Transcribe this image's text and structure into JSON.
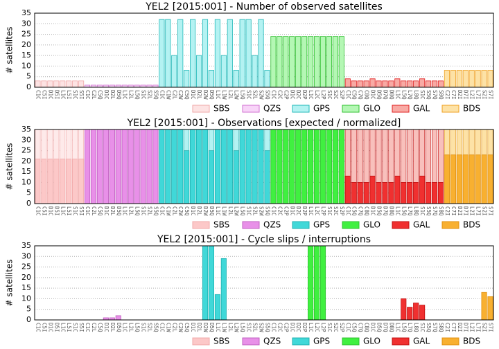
{
  "chart_data": [
    {
      "type": "bar",
      "title": "YEL2 [2015:001] - Number of observed satellites",
      "ylabel": "# satellites",
      "ylim": [
        0,
        35
      ],
      "yticks": [
        0,
        5,
        10,
        15,
        20,
        25,
        30,
        35
      ],
      "grid": true,
      "series": [
        {
          "name": "SBS",
          "color": "#fde3e3",
          "edge_color": "#f0a8a8",
          "categories": [
            "C1C",
            "C5I",
            "D1C",
            "D5I",
            "L1C",
            "L5I",
            "S1C",
            "S5I"
          ],
          "values": [
            3,
            3,
            3,
            3,
            3,
            3,
            3,
            3
          ]
        },
        {
          "name": "QZS",
          "color": "#f8d4f8",
          "edge_color": "#d070d0",
          "categories": [
            "C1C",
            "C2L",
            "C5Q",
            "D1C",
            "D2L",
            "D5Q",
            "L1C",
            "L2L",
            "L5Q",
            "S1C",
            "S2L",
            "S5Q"
          ],
          "values": [
            1,
            1,
            1,
            1,
            1,
            1,
            1,
            1,
            1,
            1,
            1,
            1
          ]
        },
        {
          "name": "GPS",
          "color": "#b4f2f2",
          "edge_color": "#20b8b8",
          "categories": [
            "C1C",
            "C1W",
            "C2L",
            "C2W",
            "C5Q",
            "D1C",
            "D2L",
            "D2W",
            "D5Q",
            "L1C",
            "L1W",
            "L2L",
            "L2W",
            "L5Q",
            "S1C",
            "S2L",
            "S2W",
            "S5Q"
          ],
          "values": [
            32,
            32,
            15,
            32,
            8,
            32,
            15,
            32,
            8,
            32,
            15,
            32,
            8,
            32,
            32,
            15,
            32,
            8
          ]
        },
        {
          "name": "GLO",
          "color": "#b4f7b4",
          "edge_color": "#30c030",
          "categories": [
            "C1C",
            "C2C",
            "C2P",
            "D1C",
            "D2C",
            "D2P",
            "L1C",
            "L2C",
            "L2P",
            "S1C",
            "S2C",
            "S2P"
          ],
          "values": [
            24,
            24,
            24,
            24,
            24,
            24,
            24,
            24,
            24,
            24,
            24,
            24
          ]
        },
        {
          "name": "GAL",
          "color": "#f8aaa4",
          "edge_color": "#e02020",
          "categories": [
            "C1C",
            "C5Q",
            "C7Q",
            "C8Q",
            "D1C",
            "D5Q",
            "D7Q",
            "D8Q",
            "L1C",
            "L5Q",
            "L7Q",
            "L8Q",
            "S1C",
            "S5Q",
            "S7Q",
            "S8Q"
          ],
          "values": [
            4,
            3,
            3,
            3,
            4,
            3,
            3,
            3,
            4,
            3,
            3,
            3,
            4,
            3,
            3,
            3
          ]
        },
        {
          "name": "BDS",
          "color": "#fde2a6",
          "edge_color": "#f0a020",
          "categories": [
            "C2I",
            "C7I",
            "D2I",
            "D7I",
            "L2I",
            "L7I",
            "S2I",
            "S7I"
          ],
          "values": [
            8,
            8,
            8,
            8,
            8,
            8,
            8,
            8
          ]
        }
      ]
    },
    {
      "type": "bar",
      "title": "YEL2 [2015:001] - Observations [expected / normalized]",
      "ylabel": "# satellites",
      "ylim": [
        0,
        35
      ],
      "yticks": [
        0,
        5,
        10,
        15,
        20,
        25,
        30,
        35
      ],
      "grid": true,
      "series": [
        {
          "name": "SBS",
          "color": "#fcc8c8",
          "expected_color": "#feeaea",
          "edge_color": "#f0a8a8",
          "categories": [
            "C1C",
            "C5I",
            "D1C",
            "D5I",
            "L1C",
            "L5I",
            "S1C",
            "S5I"
          ],
          "values": [
            21,
            21,
            21,
            21,
            21,
            21,
            21,
            21
          ],
          "expected": [
            35,
            35,
            35,
            35,
            35,
            35,
            35,
            35
          ]
        },
        {
          "name": "QZS",
          "color": "#e890e8",
          "expected_color": "#f8d4f8",
          "edge_color": "#c060c0",
          "categories": [
            "C1C",
            "C2L",
            "C5Q",
            "D1C",
            "D2L",
            "D5Q",
            "L1C",
            "L2L",
            "L5Q",
            "S1C",
            "S2L",
            "S5Q"
          ],
          "values": [
            35,
            35,
            35,
            35,
            35,
            35,
            35,
            35,
            35,
            35,
            35,
            35
          ],
          "expected": [
            35,
            35,
            35,
            35,
            35,
            35,
            35,
            35,
            35,
            35,
            35,
            35
          ]
        },
        {
          "name": "GPS",
          "color": "#40d8d8",
          "expected_color": "#b4f2f2",
          "edge_color": "#20b0b0",
          "categories": [
            "C1C",
            "C1W",
            "C2L",
            "C2W",
            "C5Q",
            "D1C",
            "D2L",
            "D2W",
            "D5Q",
            "L1C",
            "L1W",
            "L2L",
            "L2W",
            "L5Q",
            "S1C",
            "S2L",
            "S2W",
            "S5Q"
          ],
          "values": [
            35,
            35,
            35,
            35,
            25,
            35,
            35,
            35,
            25,
            35,
            35,
            35,
            25,
            35,
            35,
            35,
            35,
            25
          ],
          "expected": [
            35,
            35,
            35,
            35,
            35,
            35,
            35,
            35,
            35,
            35,
            35,
            35,
            35,
            35,
            35,
            35,
            35,
            35
          ]
        },
        {
          "name": "GLO",
          "color": "#40f040",
          "expected_color": "#b4f7b4",
          "edge_color": "#30c030",
          "categories": [
            "C1C",
            "C2C",
            "C2P",
            "D1C",
            "D2C",
            "D2P",
            "L1C",
            "L2C",
            "L2P",
            "S1C",
            "S2C",
            "S2P"
          ],
          "values": [
            35,
            35,
            35,
            35,
            35,
            35,
            35,
            35,
            35,
            35,
            35,
            35
          ],
          "expected": [
            35,
            35,
            35,
            35,
            35,
            35,
            35,
            35,
            35,
            35,
            35,
            35
          ]
        },
        {
          "name": "GAL",
          "color": "#f03030",
          "expected_color": "#f8c0bc",
          "edge_color": "#c01010",
          "categories": [
            "C1C",
            "C5Q",
            "C7Q",
            "C8Q",
            "D1C",
            "D5Q",
            "D7Q",
            "D8Q",
            "L1C",
            "L5Q",
            "L7Q",
            "L8Q",
            "S1C",
            "S5Q",
            "S7Q",
            "S8Q"
          ],
          "values": [
            13,
            10,
            10,
            10,
            13,
            10,
            10,
            10,
            13,
            10,
            10,
            10,
            13,
            10,
            10,
            10
          ],
          "expected": [
            35,
            35,
            35,
            35,
            35,
            35,
            35,
            35,
            35,
            35,
            35,
            35,
            35,
            35,
            35,
            35
          ]
        },
        {
          "name": "BDS",
          "color": "#f8b030",
          "expected_color": "#fde2a6",
          "edge_color": "#e09010",
          "categories": [
            "C2I",
            "C7I",
            "D2I",
            "D7I",
            "L2I",
            "L7I",
            "S2I",
            "S7I"
          ],
          "values": [
            23,
            23,
            23,
            23,
            23,
            23,
            23,
            23
          ],
          "expected": [
            35,
            35,
            35,
            35,
            35,
            35,
            35,
            35
          ]
        }
      ]
    },
    {
      "type": "bar",
      "title": "YEL2 [2015:001] - Cycle slips / interruptions",
      "ylabel": "# satellites",
      "ylim": [
        0,
        35
      ],
      "yticks": [
        0,
        5,
        10,
        15,
        20,
        25,
        30,
        35
      ],
      "grid": true,
      "series": [
        {
          "name": "SBS",
          "color": "#fcc8c8",
          "edge_color": "#f0a8a8",
          "categories": [
            "C1C",
            "C5I",
            "D1C",
            "D5I",
            "L1C",
            "L5I",
            "S1C",
            "S5I"
          ],
          "values": [
            0,
            0,
            0,
            0,
            0,
            0,
            0,
            0
          ]
        },
        {
          "name": "QZS",
          "color": "#e890e8",
          "edge_color": "#c060c0",
          "categories": [
            "C1C",
            "C2L",
            "C5Q",
            "D1C",
            "D2L",
            "D5Q",
            "L1C",
            "L2L",
            "L5Q",
            "S1C",
            "S2L",
            "S5Q"
          ],
          "values": [
            0,
            0,
            0,
            1,
            1,
            2,
            0,
            0,
            0,
            0,
            0,
            0
          ]
        },
        {
          "name": "GPS",
          "color": "#40d8d8",
          "edge_color": "#20b0b0",
          "categories": [
            "C1C",
            "C1W",
            "C2L",
            "C2W",
            "C5Q",
            "D1C",
            "D2L",
            "D2W",
            "D5Q",
            "L1C",
            "L1W",
            "L2L",
            "L2W",
            "L5Q",
            "S1C",
            "S2L",
            "S2W",
            "S5Q"
          ],
          "values": [
            0,
            0,
            0,
            0,
            0,
            0,
            0,
            35,
            35,
            12,
            29,
            0,
            0,
            0,
            0,
            0,
            0,
            0
          ]
        },
        {
          "name": "GLO",
          "color": "#40f040",
          "edge_color": "#30c030",
          "categories": [
            "C1C",
            "C2C",
            "C2P",
            "D1C",
            "D2C",
            "D2P",
            "L1C",
            "L2C",
            "L2P",
            "S1C",
            "S2C",
            "S2P"
          ],
          "values": [
            0,
            0,
            0,
            0,
            0,
            0,
            35,
            35,
            35,
            0,
            0,
            0
          ]
        },
        {
          "name": "GAL",
          "color": "#f03030",
          "edge_color": "#c01010",
          "categories": [
            "C1C",
            "C5Q",
            "C7Q",
            "C8Q",
            "D1C",
            "D5Q",
            "D7Q",
            "D8Q",
            "L1C",
            "L5Q",
            "L7Q",
            "L8Q",
            "S1C",
            "S5Q",
            "S7Q",
            "S8Q"
          ],
          "values": [
            0,
            0,
            0,
            0,
            0,
            0,
            0,
            0,
            0,
            10,
            6,
            8,
            7,
            0,
            0,
            0
          ]
        },
        {
          "name": "BDS",
          "color": "#f8b030",
          "edge_color": "#e09010",
          "categories": [
            "C2I",
            "C7I",
            "D2I",
            "D7I",
            "L2I",
            "L7I",
            "S2I",
            "S7I"
          ],
          "values": [
            0,
            0,
            0,
            0,
            0,
            0,
            13,
            11
          ]
        }
      ]
    }
  ]
}
